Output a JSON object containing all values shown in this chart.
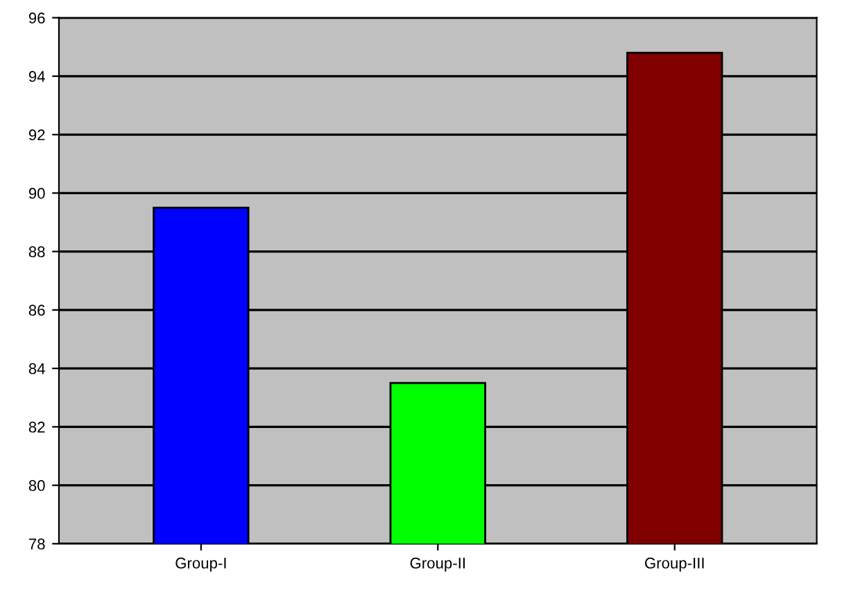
{
  "chart_data": {
    "type": "bar",
    "categories": [
      "Group-I",
      "Group-II",
      "Group-III"
    ],
    "values": [
      89.5,
      83.5,
      94.8
    ],
    "colors": [
      "#0000ff",
      "#00ff00",
      "#800000"
    ],
    "ylim": [
      78,
      96
    ],
    "yticks": [
      78,
      80,
      82,
      84,
      86,
      88,
      90,
      92,
      94,
      96
    ],
    "grid": "y"
  }
}
